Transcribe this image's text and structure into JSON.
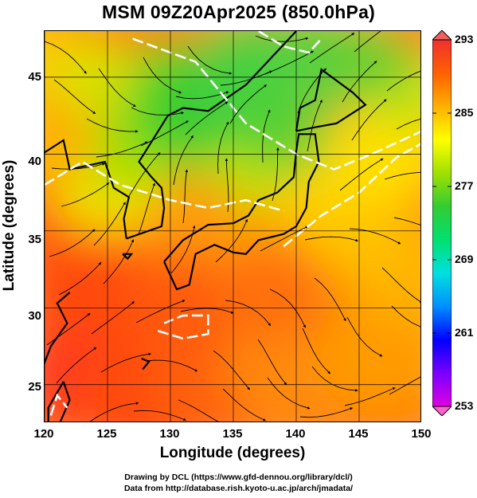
{
  "title": "MSM 09Z20Apr2025 (850.0hPa)",
  "xlabel": "Longitude (degrees)",
  "ylabel": "Latitude  (degrees)",
  "x_ticks": [
    "120",
    "125",
    "130",
    "135",
    "140",
    "145",
    "150"
  ],
  "y_ticks": [
    "45",
    "40",
    "35",
    "30",
    "25"
  ],
  "colorbar": {
    "ticks": [
      "293",
      "285",
      "277",
      "269",
      "261",
      "253"
    ],
    "min": 253,
    "max": 293,
    "colors": [
      "#e000e0",
      "#7a00ff",
      "#0000ff",
      "#0090ff",
      "#00e0e0",
      "#00e070",
      "#33cc33",
      "#a0e000",
      "#ffff00",
      "#ffb000",
      "#ff6000",
      "#f03030"
    ]
  },
  "map": {
    "lon_range": [
      120,
      150
    ],
    "lat_range": [
      22.5,
      48
    ],
    "field": "temperature (K)",
    "overlay": "wind streamlines",
    "coastlines": true,
    "grid": true
  },
  "credits": {
    "line1": "Drawing by DCL (https://www.gfd-dennou.org/library/dcl/)",
    "line2": "Data from http://database.rish.kyoto-u.ac.jp/arch/jmadata/"
  }
}
